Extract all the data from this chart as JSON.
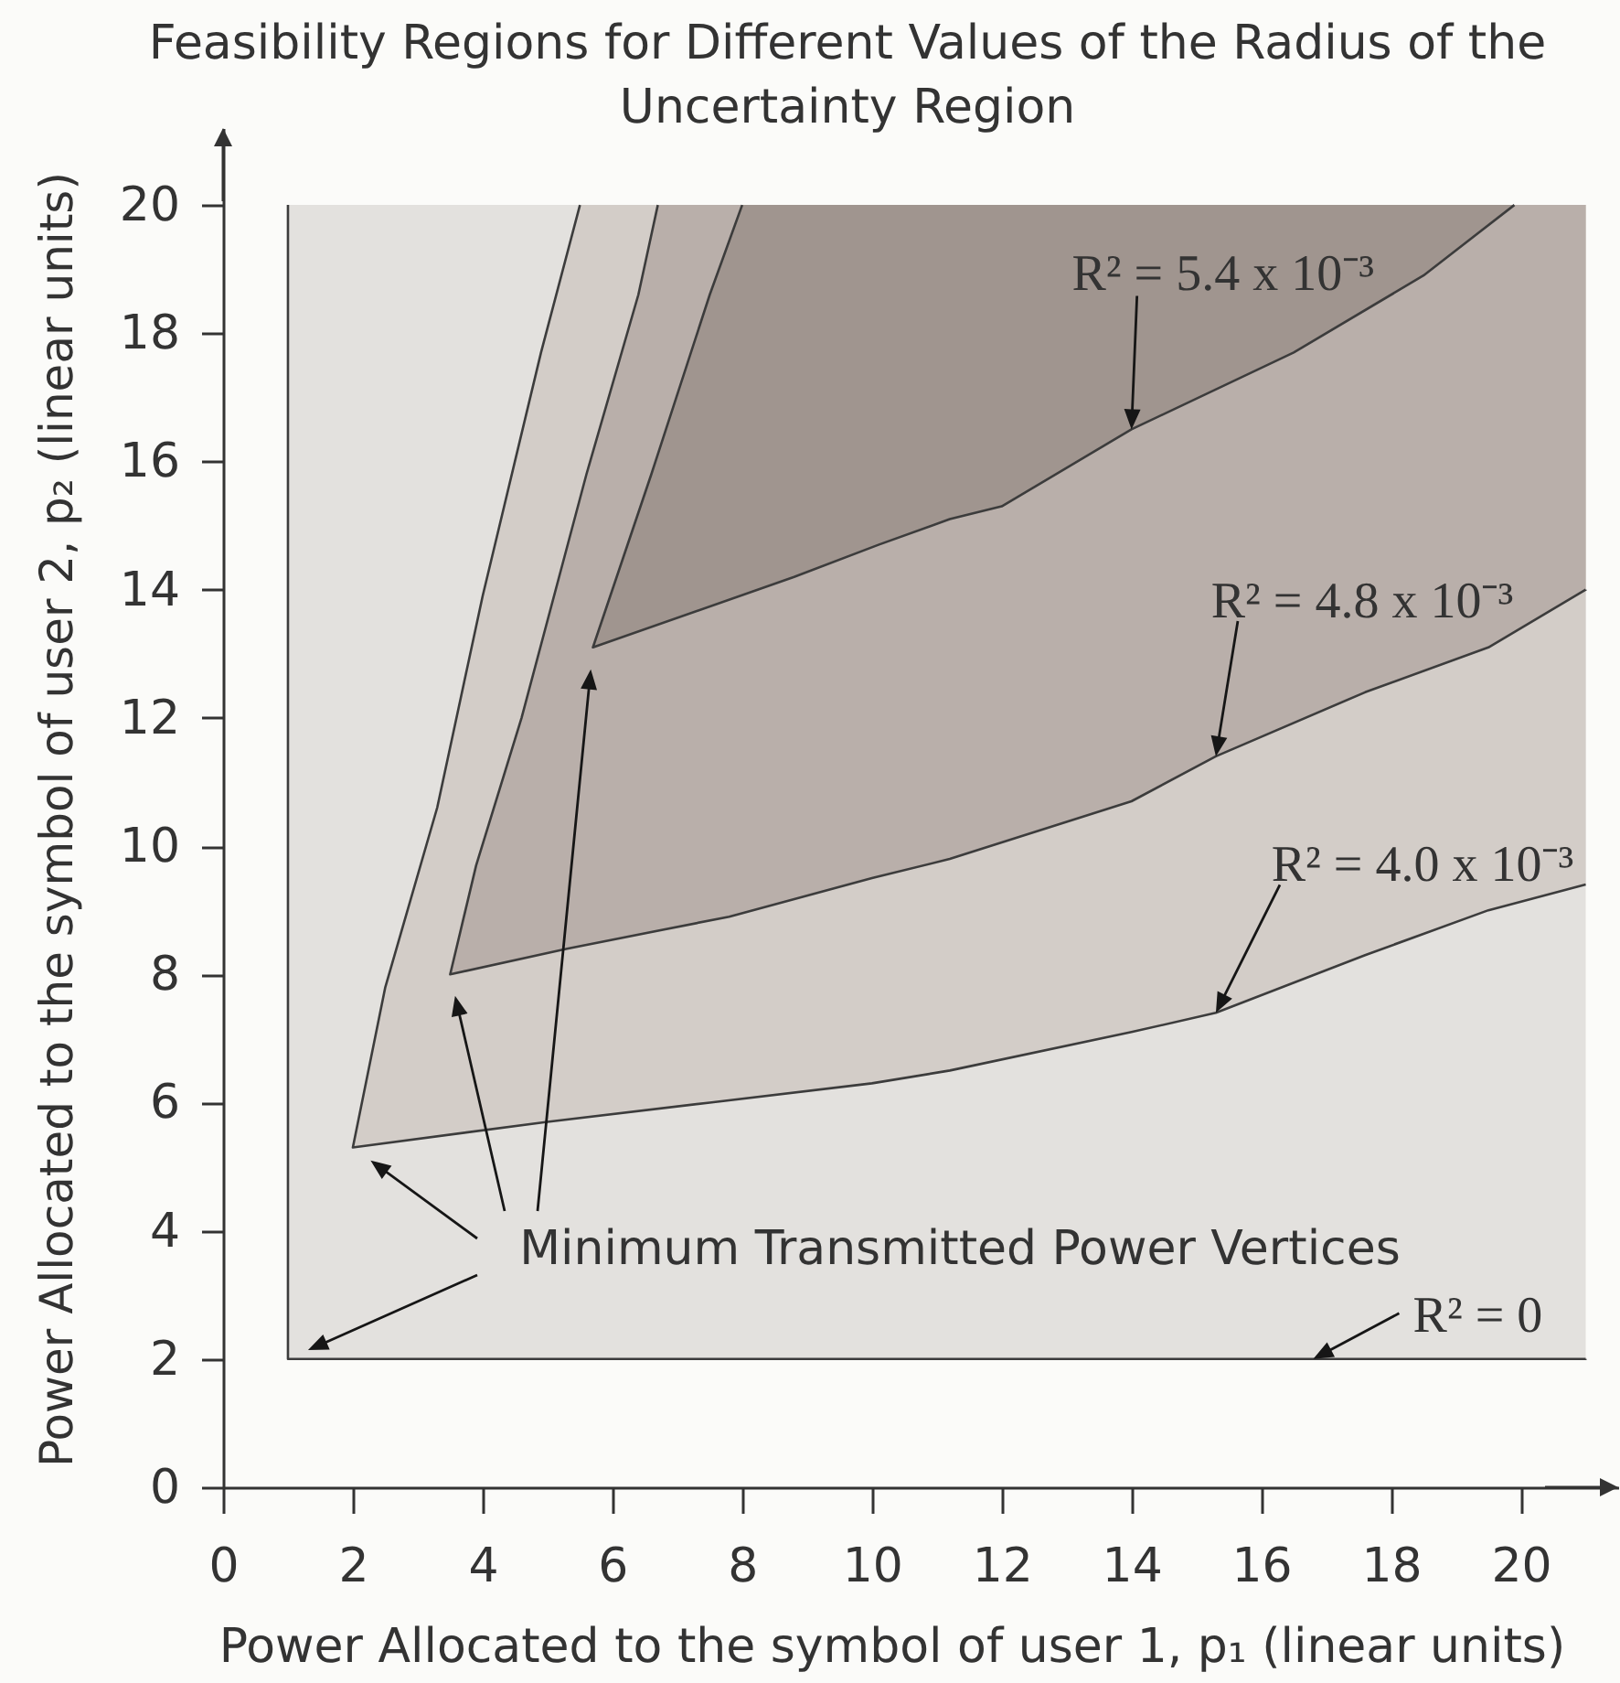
{
  "chart_data": {
    "type": "area",
    "title": "Feasibility Regions for Different Values of the Radius of the Uncertainty Region",
    "xlabel": "Power Allocated to the symbol of user 1, p₁ (linear units)",
    "ylabel": "Power Allocated to the symbol of user 2, p₂ (linear units)",
    "xlim": [
      0,
      21.5
    ],
    "ylim": [
      0,
      21.2
    ],
    "xticks": [
      0,
      2,
      4,
      6,
      8,
      10,
      12,
      14,
      16,
      18,
      20
    ],
    "yticks": [
      0,
      2,
      4,
      6,
      8,
      10,
      12,
      14,
      16,
      18,
      20
    ],
    "series": [
      {
        "color": "#e3e1de",
        "x": [
          1,
          1,
          21,
          21
        ],
        "values": [
          20,
          2,
          2,
          20
        ]
      },
      {
        "color": "#d3cdc8",
        "x": [
          5.5,
          4.9,
          4.0,
          3.3,
          2.5,
          2.0,
          5.0,
          7.5,
          10.0,
          11.2,
          14.0,
          15.3,
          17.6,
          19.5,
          21.0,
          21.0
        ],
        "values": [
          20,
          17.7,
          13.9,
          10.6,
          7.8,
          5.3,
          5.7,
          6.0,
          6.3,
          6.5,
          7.1,
          7.4,
          8.3,
          9.0,
          9.4,
          20
        ]
      },
      {
        "color": "#b9afaa",
        "x": [
          6.7,
          6.4,
          5.6,
          4.6,
          3.9,
          3.5,
          5.3,
          7.8,
          10.0,
          11.2,
          14.0,
          15.3,
          17.6,
          19.5,
          21.0,
          21.0
        ],
        "values": [
          20,
          18.6,
          15.8,
          12.0,
          9.7,
          8.0,
          8.4,
          8.9,
          9.5,
          9.8,
          10.7,
          11.4,
          12.4,
          13.1,
          14.0,
          20
        ]
      },
      {
        "color": "#a0958f",
        "x": [
          8.0,
          7.5,
          6.6,
          5.7,
          8.8,
          10.1,
          11.2,
          12.0,
          14.0,
          16.5,
          18.5,
          19.9
        ],
        "values": [
          20,
          18.6,
          15.8,
          13.1,
          14.2,
          14.7,
          15.1,
          15.3,
          16.5,
          17.7,
          18.9,
          20
        ]
      }
    ],
    "annotations": [
      {
        "text": "R² = 5.4 x 10⁻³",
        "x": 14.0,
        "y": 16.5
      },
      {
        "text": "R² = 4.8 x 10⁻³",
        "x": 15.3,
        "y": 11.4
      },
      {
        "text": "R² = 4.0 x 10⁻³",
        "x": 15.3,
        "y": 7.4
      },
      "Minimum Transmitted Power Vertices",
      {
        "text": "R² = 0",
        "x": 16.8,
        "y": 2.0
      }
    ]
  }
}
